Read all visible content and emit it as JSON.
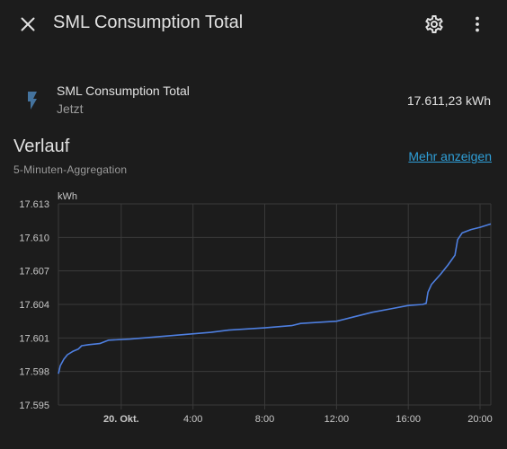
{
  "header": {
    "title": "SML Consumption Total"
  },
  "entity": {
    "name": "SML Consumption Total",
    "last_changed": "Jetzt",
    "state": "17.611,23 kWh",
    "icon": "flash-icon"
  },
  "history": {
    "title": "Verlauf",
    "subtitle": "5-Minuten-Aggregation",
    "more_link": "Mehr anzeigen"
  },
  "colors": {
    "background": "#1c1c1c",
    "line": "#4e7fe0",
    "grid": "#3a3a3a",
    "link": "#2f9fd8",
    "icon": "#44739e"
  },
  "chart_data": {
    "type": "line",
    "ylabel": "kWh",
    "ylim": [
      17.595,
      17.613
    ],
    "xlim_hours": [
      -3.5,
      20.6
    ],
    "y_ticks": [
      "17.613",
      "17.610",
      "17.607",
      "17.604",
      "17.601",
      "17.598",
      "17.595"
    ],
    "y_tick_values": [
      17.613,
      17.61,
      17.607,
      17.604,
      17.601,
      17.598,
      17.595
    ],
    "x_ticks": [
      {
        "label": "20. Okt.",
        "hour": 0,
        "bold": true
      },
      {
        "label": "4:00",
        "hour": 4,
        "bold": false
      },
      {
        "label": "8:00",
        "hour": 8,
        "bold": false
      },
      {
        "label": "12:00",
        "hour": 12,
        "bold": false
      },
      {
        "label": "16:00",
        "hour": 16,
        "bold": false
      },
      {
        "label": "20:00",
        "hour": 20,
        "bold": false
      }
    ],
    "grid": true,
    "series": [
      {
        "name": "SML Consumption Total",
        "points": [
          [
            -3.5,
            17.5978
          ],
          [
            -3.4,
            17.5985
          ],
          [
            -3.2,
            17.5991
          ],
          [
            -3.0,
            17.5995
          ],
          [
            -2.7,
            17.5998
          ],
          [
            -2.4,
            17.6
          ],
          [
            -2.2,
            17.6003
          ],
          [
            -1.8,
            17.6004
          ],
          [
            -1.2,
            17.6005
          ],
          [
            -0.7,
            17.6008
          ],
          [
            0.5,
            17.6009
          ],
          [
            2.0,
            17.6011
          ],
          [
            3.5,
            17.6013
          ],
          [
            5.0,
            17.6015
          ],
          [
            6.0,
            17.6017
          ],
          [
            8.0,
            17.6019
          ],
          [
            9.5,
            17.6021
          ],
          [
            10.0,
            17.6023
          ],
          [
            11.0,
            17.6024
          ],
          [
            12.0,
            17.6025
          ],
          [
            13.0,
            17.6029
          ],
          [
            14.0,
            17.6033
          ],
          [
            15.0,
            17.6036
          ],
          [
            16.0,
            17.6039
          ],
          [
            16.8,
            17.604
          ],
          [
            17.0,
            17.6041
          ],
          [
            17.1,
            17.6051
          ],
          [
            17.3,
            17.6058
          ],
          [
            17.8,
            17.6067
          ],
          [
            18.2,
            17.6075
          ],
          [
            18.6,
            17.6084
          ],
          [
            18.75,
            17.6098
          ],
          [
            19.0,
            17.6104
          ],
          [
            19.5,
            17.6107
          ],
          [
            20.0,
            17.6109
          ],
          [
            20.6,
            17.6112
          ]
        ]
      }
    ]
  }
}
